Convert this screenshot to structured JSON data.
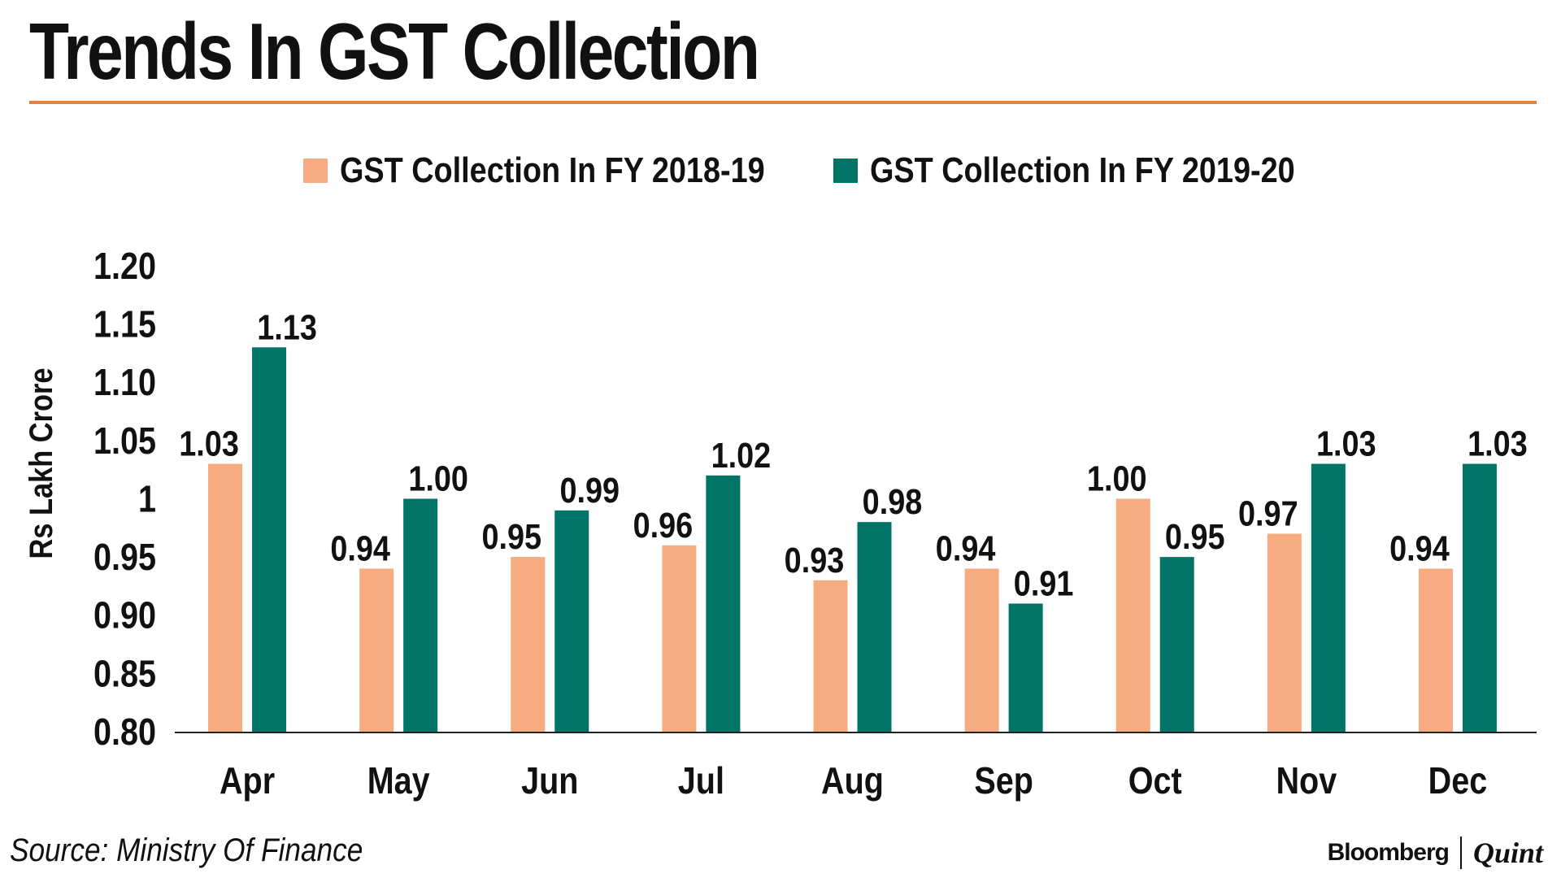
{
  "title": "Trends In GST Collection",
  "source": "Source: Ministry Of Finance",
  "brand": {
    "primary": "Bloomberg",
    "secondary": "Quint"
  },
  "colors": {
    "accent_rule": "#e8803a",
    "series_2018": "#f7ab80",
    "series_2019": "#007567",
    "text": "#111111"
  },
  "chart_data": {
    "type": "bar",
    "title": "Trends In GST Collection",
    "xlabel": "",
    "ylabel": "Rs Lakh Crore",
    "ylim": [
      0.8,
      1.2
    ],
    "y_ticks": [
      0.8,
      0.85,
      0.9,
      0.95,
      1.0,
      1.05,
      1.1,
      1.15,
      1.2
    ],
    "y_tick_labels": [
      "0.80",
      "0.85",
      "0.90",
      "0.95",
      "1",
      "1.05",
      "1.10",
      "1.15",
      "1.20"
    ],
    "grid": false,
    "legend_position": "top-center",
    "categories": [
      "Apr",
      "May",
      "Jun",
      "Jul",
      "Aug",
      "Sep",
      "Oct",
      "Nov",
      "Dec"
    ],
    "series": [
      {
        "name": "GST Collection In FY 2018-19",
        "color": "#f7ab80",
        "values": [
          1.03,
          0.94,
          0.95,
          0.96,
          0.93,
          0.94,
          1.0,
          0.97,
          0.94
        ],
        "labels": [
          "1.03",
          "0.94",
          "0.95",
          "0.96",
          "0.93",
          "0.94",
          "1.00",
          "0.97",
          "0.94"
        ]
      },
      {
        "name": "GST Collection In FY 2019-20",
        "color": "#007567",
        "values": [
          1.13,
          1.0,
          0.99,
          1.02,
          0.98,
          0.91,
          0.95,
          1.03,
          1.03
        ],
        "labels": [
          "1.13",
          "1.00",
          "0.99",
          "1.02",
          "0.98",
          "0.91",
          "0.95",
          "1.03",
          "1.03"
        ]
      }
    ]
  }
}
